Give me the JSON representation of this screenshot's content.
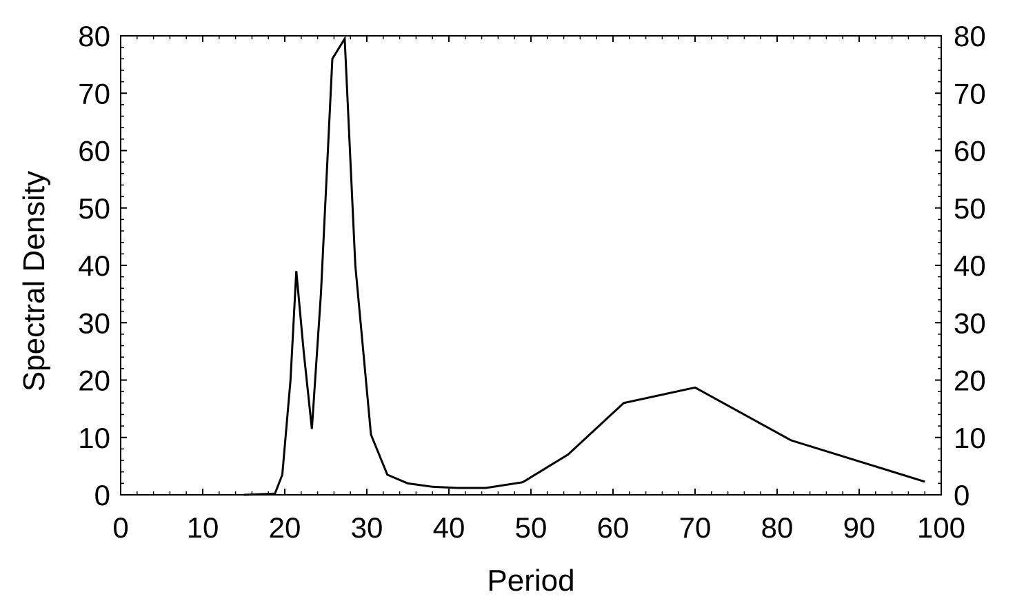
{
  "chart_data": {
    "type": "line",
    "title": "",
    "xlabel": "Period",
    "ylabel": "Spectral Density",
    "xlim": [
      0,
      100
    ],
    "ylim": [
      0,
      80
    ],
    "xticks": [
      0,
      10,
      20,
      30,
      40,
      50,
      60,
      70,
      80,
      90,
      100
    ],
    "yticks": [
      0,
      10,
      20,
      30,
      40,
      50,
      60,
      70,
      80
    ],
    "xtick_labels": [
      "0",
      "10",
      "20",
      "30",
      "40",
      "50",
      "60",
      "70",
      "80",
      "90",
      "100"
    ],
    "ytick_labels": [
      "0",
      "10",
      "20",
      "30",
      "40",
      "50",
      "60",
      "70",
      "80"
    ],
    "right_axis_labels": true,
    "grid": false,
    "series": [
      {
        "x": [
          15.0,
          18.8,
          19.7,
          20.7,
          21.4,
          22.3,
          23.3,
          24.4,
          25.8,
          27.3,
          28.6,
          30.5,
          32.5,
          35.0,
          38.0,
          41.0,
          44.5,
          49.0,
          54.5,
          61.3,
          70.0,
          81.7,
          98.0
        ],
        "y": [
          0.0,
          0.2,
          3.5,
          20.0,
          39.0,
          25.0,
          11.5,
          35.0,
          76.0,
          79.5,
          40.0,
          10.5,
          3.5,
          2.0,
          1.4,
          1.2,
          1.2,
          2.2,
          7.0,
          16.0,
          18.7,
          9.5,
          2.3
        ]
      }
    ]
  }
}
